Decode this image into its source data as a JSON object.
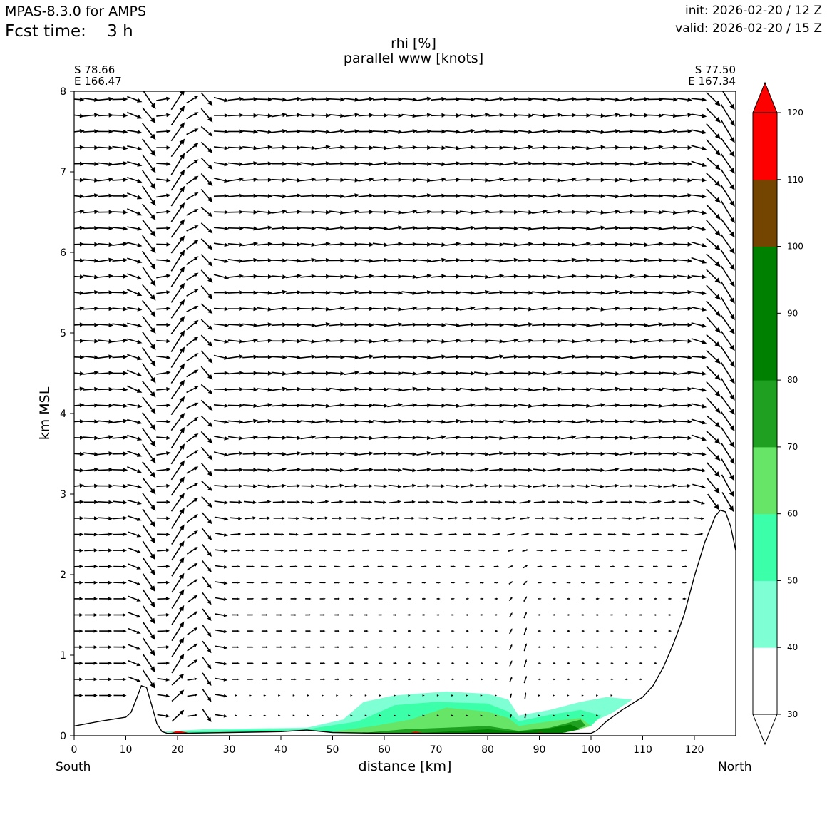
{
  "header": {
    "model": "MPAS-8.3.0 for AMPS",
    "fcst_label": "Fcst time:    3 h",
    "init": "init: 2026-02-20 / 12 Z",
    "valid": "valid: 2026-02-20 / 15 Z"
  },
  "endpoints": {
    "left_lat": "S 78.66",
    "left_lon": "E 166.47",
    "right_lat": "S 77.50",
    "right_lon": "E 167.34",
    "left_dir": "South",
    "right_dir": "North"
  },
  "chart_data": {
    "type": "heatmap",
    "title_lines": [
      "rhi [%]",
      "parallel www [knots]"
    ],
    "xlabel": "distance [km]",
    "ylabel": "km MSL",
    "xlim": [
      0,
      128
    ],
    "ylim": [
      0,
      8
    ],
    "x_ticks": [
      0,
      10,
      20,
      30,
      40,
      50,
      60,
      70,
      80,
      90,
      100,
      110,
      120
    ],
    "y_ticks": [
      0,
      1,
      2,
      3,
      4,
      5,
      6,
      7,
      8
    ],
    "terrain": {
      "x": [
        0,
        5,
        10,
        11,
        12,
        13,
        14,
        15,
        16,
        17,
        18,
        20,
        30,
        40,
        45,
        50,
        60,
        70,
        80,
        90,
        100,
        101,
        103,
        106,
        108,
        110,
        112,
        114,
        116,
        118,
        120,
        122,
        124,
        125,
        126,
        127,
        128
      ],
      "y": [
        0.12,
        0.18,
        0.23,
        0.29,
        0.45,
        0.62,
        0.6,
        0.38,
        0.15,
        0.05,
        0.03,
        0.03,
        0.04,
        0.05,
        0.07,
        0.04,
        0.03,
        0.03,
        0.03,
        0.03,
        0.03,
        0.06,
        0.18,
        0.32,
        0.4,
        0.48,
        0.62,
        0.85,
        1.15,
        1.5,
        1.98,
        2.4,
        2.72,
        2.8,
        2.78,
        2.6,
        2.3
      ]
    },
    "colorbar": {
      "levels": [
        30,
        40,
        50,
        60,
        70,
        80,
        90,
        100,
        110,
        120
      ],
      "colors": [
        "#ffffff",
        "#7fffd4",
        "#3cffaa",
        "#66e566",
        "#20a020",
        "#008000",
        "#008000",
        "#734500",
        "#ff0000"
      ],
      "extend": "both"
    },
    "rhi_regions": [
      {
        "level": 40,
        "x": [
          17,
          25,
          35,
          45,
          52,
          56,
          62,
          72,
          80,
          84,
          86,
          92,
          98,
          103,
          108,
          104,
          100,
          96,
          90,
          84,
          70,
          58,
          45,
          30,
          20,
          17
        ],
        "y": [
          0.05,
          0.08,
          0.09,
          0.1,
          0.2,
          0.42,
          0.5,
          0.55,
          0.52,
          0.45,
          0.25,
          0.32,
          0.42,
          0.48,
          0.45,
          0.28,
          0.16,
          0.08,
          0.03,
          0.02,
          0.02,
          0.02,
          0.03,
          0.03,
          0.03,
          0.05
        ]
      },
      {
        "level": 50,
        "x": [
          18,
          30,
          45,
          55,
          62,
          70,
          80,
          84,
          86,
          92,
          98,
          102,
          100,
          96,
          90,
          84,
          70,
          58,
          45,
          30,
          18
        ],
        "y": [
          0.05,
          0.07,
          0.08,
          0.18,
          0.38,
          0.42,
          0.4,
          0.3,
          0.18,
          0.26,
          0.32,
          0.25,
          0.12,
          0.06,
          0.03,
          0.02,
          0.02,
          0.02,
          0.03,
          0.03,
          0.05
        ]
      },
      {
        "level": 60,
        "x": [
          50,
          58,
          65,
          72,
          80,
          84,
          86,
          92,
          98,
          100,
          96,
          90,
          84,
          70,
          58,
          50
        ],
        "y": [
          0.05,
          0.12,
          0.2,
          0.35,
          0.3,
          0.22,
          0.12,
          0.18,
          0.22,
          0.12,
          0.05,
          0.03,
          0.02,
          0.02,
          0.02,
          0.05
        ]
      },
      {
        "level": 70,
        "x": [
          55,
          64,
          72,
          80,
          84,
          86,
          92,
          98,
          99,
          95,
          88,
          80,
          70,
          60,
          55
        ],
        "y": [
          0.03,
          0.08,
          0.1,
          0.12,
          0.08,
          0.06,
          0.1,
          0.2,
          0.12,
          0.04,
          0.02,
          0.02,
          0.02,
          0.02,
          0.03
        ]
      },
      {
        "level": 80,
        "x": [
          62,
          72,
          80,
          86,
          92,
          96,
          98,
          94,
          86,
          78,
          70,
          62
        ],
        "y": [
          0.02,
          0.05,
          0.08,
          0.05,
          0.09,
          0.14,
          0.08,
          0.03,
          0.02,
          0.02,
          0.02,
          0.02
        ]
      },
      {
        "level": 110,
        "x": [
          18,
          20,
          22,
          21,
          18
        ],
        "y": [
          0.02,
          0.06,
          0.04,
          0.02,
          0.02
        ]
      },
      {
        "level": 110,
        "x": [
          64,
          66,
          68,
          66,
          64
        ],
        "y": [
          0.02,
          0.05,
          0.03,
          0.02,
          0.02
        ]
      },
      {
        "level": 110,
        "x": [
          88,
          90,
          92,
          90,
          88
        ],
        "y": [
          0.02,
          0.04,
          0.03,
          0.02,
          0.02
        ]
      }
    ],
    "wind_vectors": {
      "description": "Wind field sampled along the section: strong uniform westerly-ish flow above 3 km with near-vertical plume columns at x≈13-16 km and x≈20-25 km and strong sloping flow along the right ridge; weak flow below 2 km over x=30-110 km.",
      "sample_x_spacing_km": 2.8,
      "sample_z_levels_km": [
        0.25,
        0.5,
        0.7,
        0.9,
        1.1,
        1.3,
        1.5,
        1.7,
        1.9,
        2.1,
        2.3,
        2.5,
        2.7,
        2.9,
        3.1,
        3.3,
        3.5,
        3.7,
        3.9,
        4.1,
        4.3,
        4.5,
        4.7,
        4.9,
        5.1,
        5.3,
        5.5,
        5.7,
        5.9,
        6.1,
        6.3,
        6.5,
        6.7,
        6.9,
        7.1,
        7.3,
        7.5,
        7.7,
        7.9
      ]
    }
  }
}
